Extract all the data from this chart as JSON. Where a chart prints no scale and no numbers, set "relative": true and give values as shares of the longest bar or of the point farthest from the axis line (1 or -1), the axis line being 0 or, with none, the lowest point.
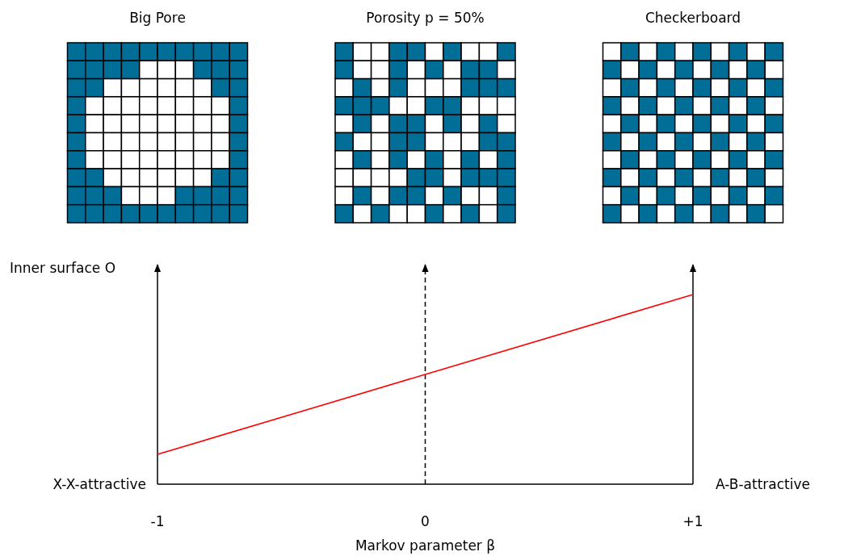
{
  "chart_data": {
    "type": "line",
    "relative": true,
    "x": [
      -1,
      0,
      1
    ],
    "series": [
      {
        "color": "#ff0000",
        "values": [
          0.157,
          0.579,
          1
        ]
      }
    ],
    "xlim": [
      -1,
      1
    ],
    "xticks": [
      {
        "value": -1,
        "label": "-1"
      },
      0,
      {
        "value": 1,
        "label": "+1"
      }
    ],
    "xlabel": "Markov parameter β",
    "ylabel": "Inner surface O",
    "ref_lines": [
      {
        "axis": "x",
        "value": 0,
        "line_style": "dashed",
        "color": "#000000"
      },
      {
        "axis": "x",
        "value": 1,
        "line_style": "solid",
        "color": "#000000"
      }
    ],
    "annotations": [
      "Big Pore",
      "Porosity p = 50%",
      "Checkerboard",
      "X-X-attractive",
      "A-B-attractive"
    ],
    "grid": false,
    "marker": "none",
    "line_style": "solid"
  }
}
